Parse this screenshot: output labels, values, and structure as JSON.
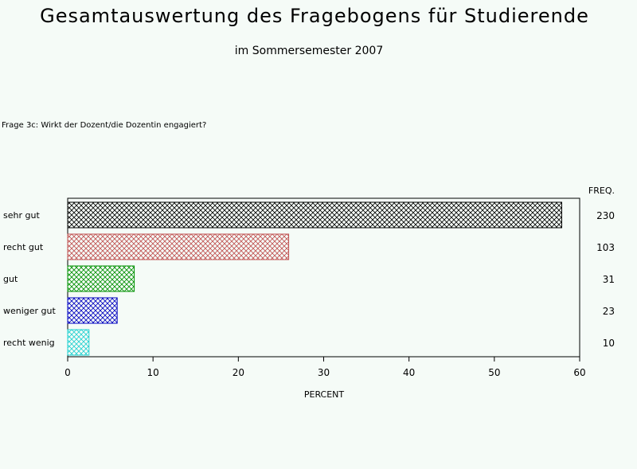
{
  "chart_data": {
    "type": "bar",
    "orientation": "horizontal",
    "title": "Gesamtauswertung des Fragebogens für Studierende",
    "subtitle": "im Sommersemester 2007",
    "question": "Frage 3c: Wirkt der Dozent/die Dozentin engagiert?",
    "xlabel": "PERCENT",
    "freq_header": "FREQ.",
    "xlim": [
      0,
      60
    ],
    "x_ticks": [
      0,
      10,
      20,
      30,
      40,
      50,
      60
    ],
    "categories": [
      "sehr gut",
      "recht gut",
      "gut",
      "weniger gut",
      "recht wenig"
    ],
    "values": [
      57.9,
      25.9,
      7.8,
      5.8,
      2.5
    ],
    "freq": [
      "230",
      "103",
      "31",
      "23",
      "10"
    ],
    "colors": [
      "#000000",
      "#c05050",
      "#009000",
      "#0000c0",
      "#20d0d0"
    ],
    "grid": false,
    "pattern": "crosshatch"
  }
}
